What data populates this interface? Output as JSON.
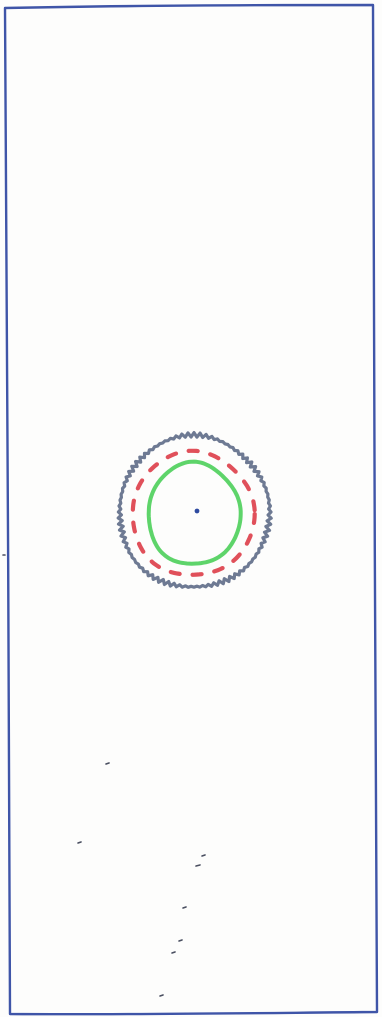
{
  "colors": {
    "paper": "#fdfdfc",
    "frame": "#3f55a8",
    "outer_ring": "#6e7a93",
    "dashed_ring": "#e0505a",
    "inner_ring": "#5ed46a",
    "center_dot": "#2e4aa0",
    "specks": "#4a4f60"
  },
  "icons": {
    "frame": "hand-drawn-rectangle",
    "outer_ring": "jagged-circle",
    "dashed_ring": "dashed-circle",
    "inner_ring": "solid-circle",
    "center": "dot"
  }
}
